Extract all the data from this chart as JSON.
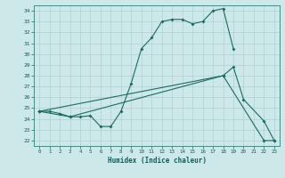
{
  "xlabel": "Humidex (Indice chaleur)",
  "xlim": [
    -0.5,
    23.5
  ],
  "ylim": [
    21.5,
    34.5
  ],
  "xticks": [
    0,
    1,
    2,
    3,
    4,
    5,
    6,
    7,
    8,
    9,
    10,
    11,
    12,
    13,
    14,
    15,
    16,
    17,
    18,
    19,
    20,
    21,
    22,
    23
  ],
  "yticks": [
    22,
    23,
    24,
    25,
    26,
    27,
    28,
    29,
    30,
    31,
    32,
    33,
    34
  ],
  "bg_color": "#cce8e8",
  "grid_color": "#b0d0d0",
  "line_color": "#1e6b5e",
  "line1_x": [
    0,
    1,
    2,
    3,
    4,
    5,
    6,
    7,
    8,
    9,
    10,
    11,
    12,
    13,
    14,
    15,
    16,
    17,
    18,
    19
  ],
  "line1_y": [
    24.7,
    24.7,
    24.5,
    24.2,
    24.2,
    24.3,
    23.3,
    23.3,
    24.7,
    27.3,
    30.5,
    31.5,
    33.0,
    33.2,
    33.2,
    32.8,
    33.0,
    34.0,
    34.2,
    30.5
  ],
  "line2_x": [
    0,
    3,
    18,
    19,
    20,
    22,
    23
  ],
  "line2_y": [
    24.7,
    24.2,
    28.0,
    28.8,
    25.8,
    23.8,
    22.0
  ],
  "line3_x": [
    0,
    18,
    22,
    23
  ],
  "line3_y": [
    24.7,
    28.0,
    22.0,
    22.0
  ]
}
